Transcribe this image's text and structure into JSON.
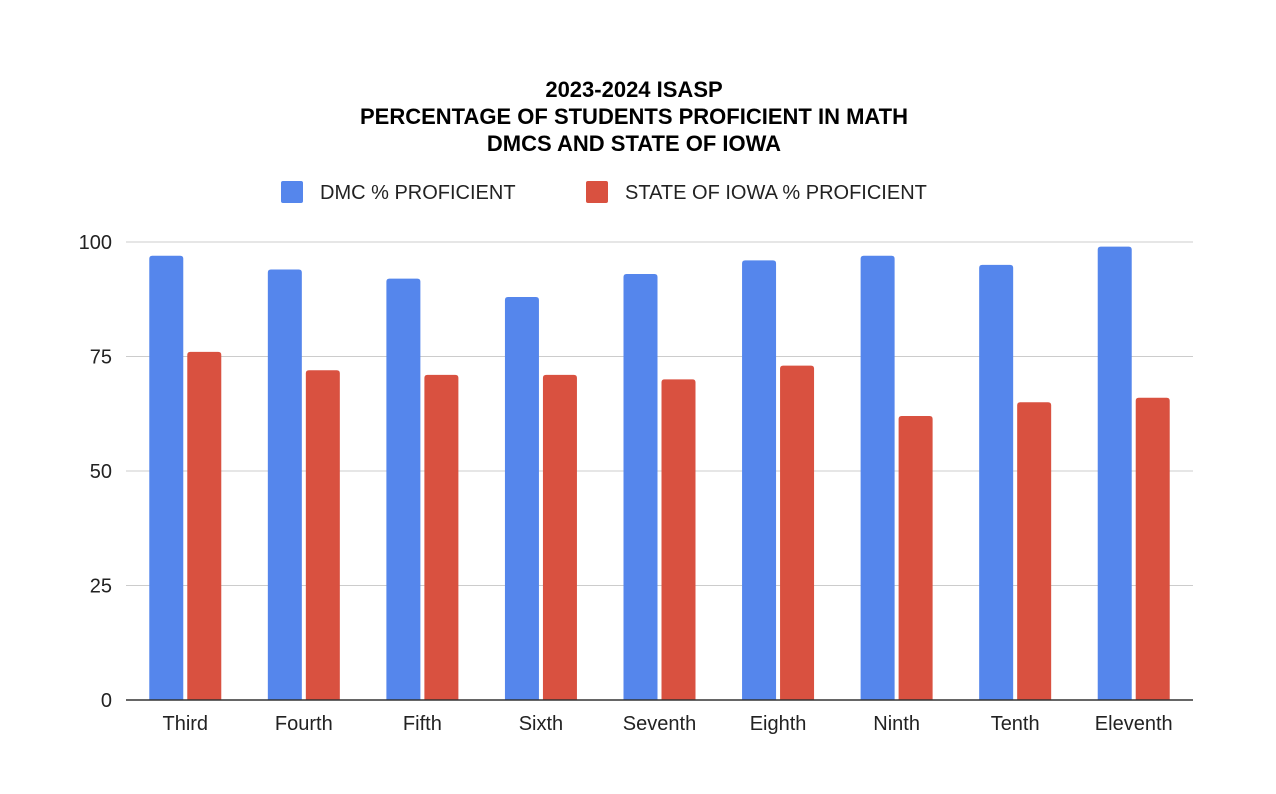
{
  "chart_data": {
    "type": "bar",
    "title_lines": [
      "2023-2024 ISASP",
      "PERCENTAGE OF STUDENTS PROFICIENT IN MATH",
      "DMCS AND STATE OF IOWA"
    ],
    "xlabel": "",
    "ylabel": "",
    "categories": [
      "Third",
      "Fourth",
      "Fifth",
      "Sixth",
      "Seventh",
      "Eighth",
      "Ninth",
      "Tenth",
      "Eleventh"
    ],
    "series": [
      {
        "name": "DMC % PROFICIENT",
        "color": "#5586EC",
        "values": [
          97,
          94,
          92,
          88,
          93,
          96,
          97,
          95,
          99
        ]
      },
      {
        "name": "STATE OF IOWA % PROFICIENT",
        "color": "#D95140",
        "values": [
          76,
          72,
          71,
          71,
          70,
          73,
          62,
          65,
          66
        ]
      }
    ],
    "ylim": [
      0,
      100
    ],
    "yticks": [
      0,
      25,
      50,
      75,
      100
    ],
    "grid": true,
    "legend_position": "top"
  }
}
